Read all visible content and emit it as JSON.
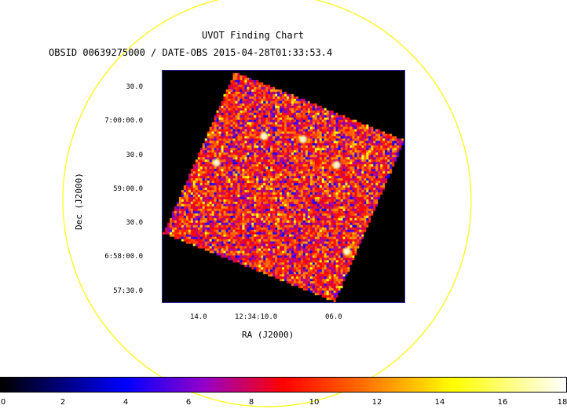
{
  "chart": {
    "title": "UVOT Finding Chart",
    "subtitle": "OBSID 00639275000 / DATE-OBS 2015-04-28T01:33:53.4",
    "xlabel": "RA (J2000)",
    "ylabel": "Dec (J2000)"
  },
  "ra_ticks": [
    "14.0",
    "12:34:10.0",
    "06.0"
  ],
  "dec_ticks": [
    "30.0",
    "7:00:00.0",
    "30.0",
    "59:00.0",
    "30.0",
    "6:58:00.0",
    "57:30.0"
  ],
  "colorbar": {
    "labels": [
      "0",
      "2",
      "4",
      "6",
      "8",
      "10",
      "12",
      "14",
      "16",
      "18"
    ],
    "range": [
      0,
      18
    ]
  },
  "colors": {
    "circle": "#ffff00",
    "frame": "#2a2aa0"
  },
  "chart_data": {
    "type": "heatmap",
    "title": "UVOT Finding Chart",
    "subtitle": "OBSID 00639275000 / DATE-OBS 2015-04-28T01:33:53.4",
    "xlabel": "RA (J2000)",
    "ylabel": "Dec (J2000)",
    "x_tick_labels": [
      "14.0",
      "12:34:10.0",
      "06.0"
    ],
    "y_tick_labels": [
      "30.0",
      "7:00:00.0",
      "30.0",
      "59:00.0",
      "30.0",
      "6:58:00.0",
      "57:30.0"
    ],
    "colorbar_range": [
      0,
      18
    ],
    "colorbar_ticks": [
      0,
      2,
      4,
      6,
      8,
      10,
      12,
      14,
      16,
      18
    ]
  }
}
